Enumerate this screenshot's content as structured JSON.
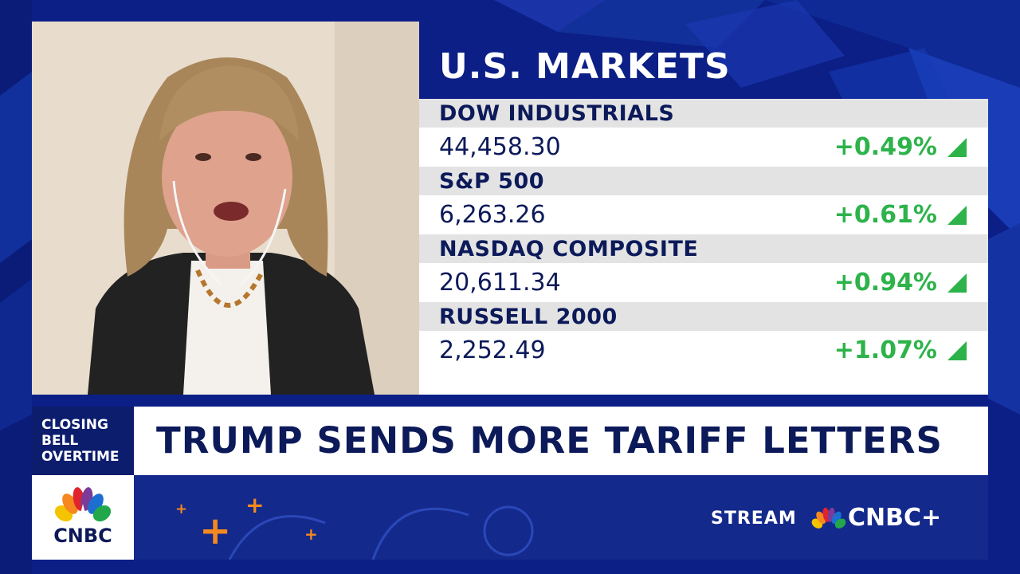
{
  "markets": {
    "title": "U.S. MARKETS",
    "indices": [
      {
        "name": "DOW INDUSTRIALS",
        "value": "44,458.30",
        "change": "+0.49%",
        "direction": "up"
      },
      {
        "name": "S&P 500",
        "value": "6,263.26",
        "change": "+0.61%",
        "direction": "up"
      },
      {
        "name": "NASDAQ COMPOSITE",
        "value": "20,611.34",
        "change": "+0.94%",
        "direction": "up"
      },
      {
        "name": "RUSSELL 2000",
        "value": "2,252.49",
        "change": "+1.07%",
        "direction": "up"
      }
    ]
  },
  "lower_third": {
    "show_lines": [
      "CLOSING",
      "BELL",
      "OVERTIME"
    ],
    "headline": "TRUMP SENDS MORE TARIFF LETTERS"
  },
  "branding": {
    "logo_text": "CNBC",
    "stream_label": "STREAM",
    "stream_brand": "CNBC+"
  },
  "colors": {
    "navy": "#0c1a5a",
    "positive_green": "#2db34a",
    "accent_orange": "#f5891f",
    "background_blue": "#0b1f86"
  }
}
